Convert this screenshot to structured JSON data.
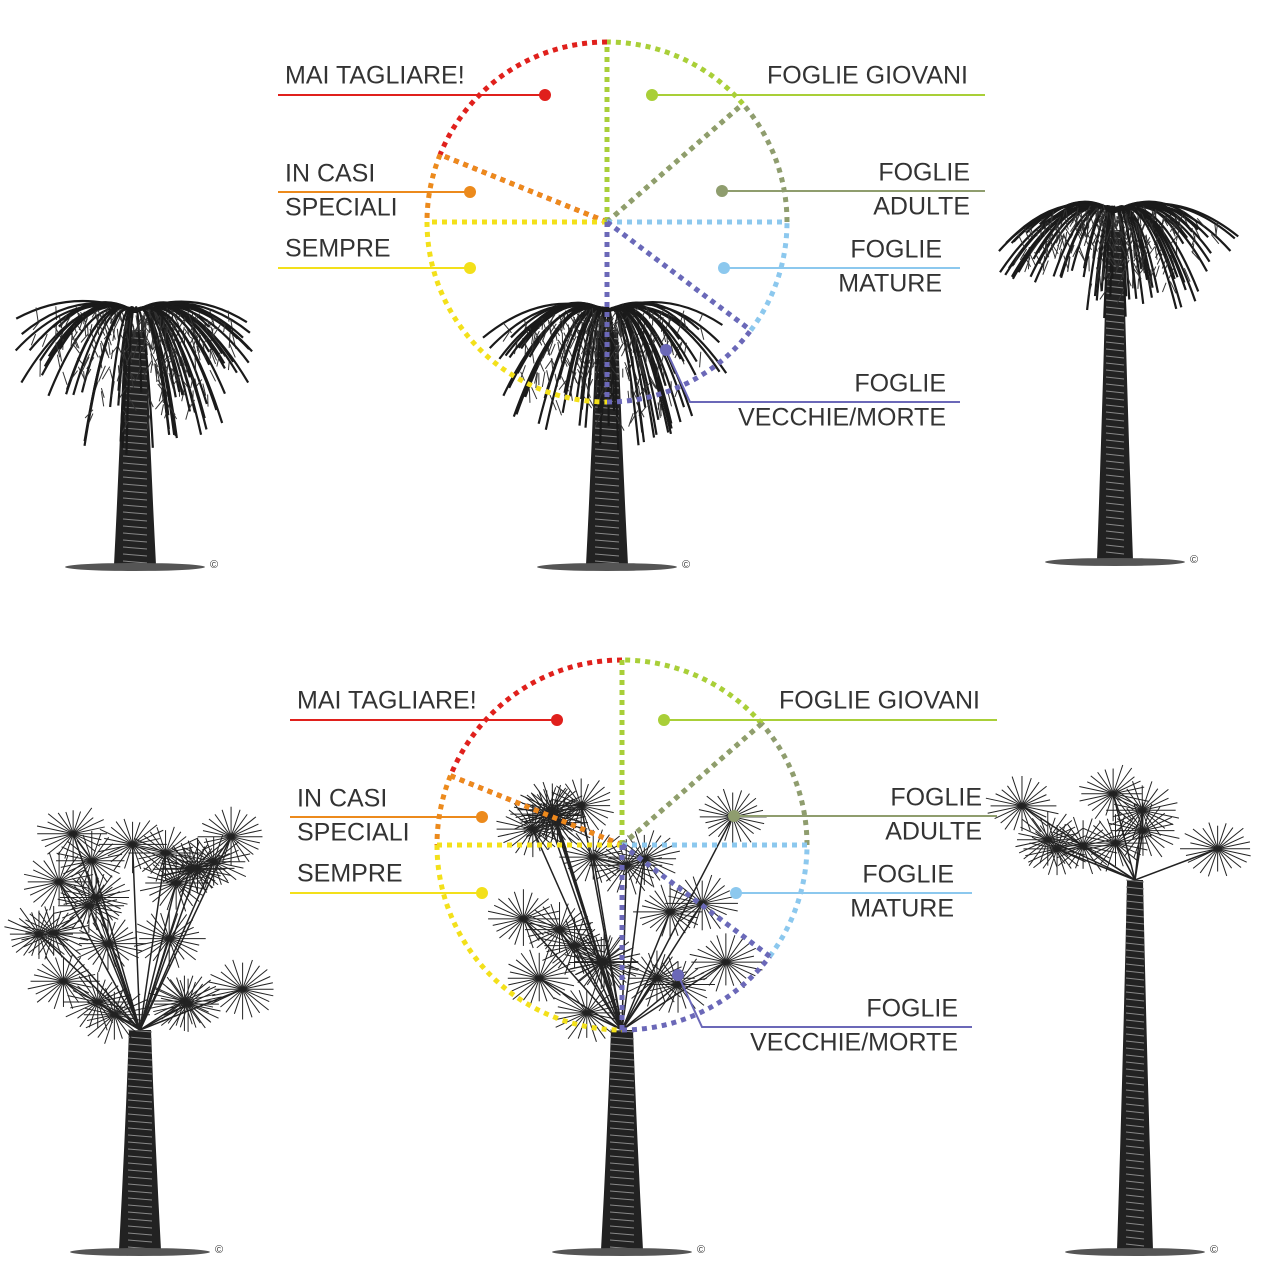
{
  "panels": [
    {
      "labels": {
        "never_cut": "MAI TAGLIARE!",
        "special_cases": [
          "IN CASI",
          "SPECIALI"
        ],
        "always": "SEMPRE",
        "young_leaves": "FOGLIE GIOVANI",
        "adult_leaves": [
          "FOGLIE",
          "ADULTE"
        ],
        "mature_leaves": [
          "FOGLIE",
          "MATURE"
        ],
        "old_dead_leaves": [
          "FOGLIE",
          "VECCHIE/MORTE"
        ]
      }
    },
    {
      "labels": {
        "never_cut": "MAI TAGLIARE!",
        "special_cases": [
          "IN CASI",
          "SPECIALI"
        ],
        "always": "SEMPRE",
        "young_leaves": "FOGLIE GIOVANI",
        "adult_leaves": [
          "FOGLIE",
          "ADULTE"
        ],
        "mature_leaves": [
          "FOGLIE",
          "MATURE"
        ],
        "old_dead_leaves": [
          "FOGLIE",
          "VECCHIE/MORTE"
        ]
      }
    }
  ],
  "copyright": "©"
}
